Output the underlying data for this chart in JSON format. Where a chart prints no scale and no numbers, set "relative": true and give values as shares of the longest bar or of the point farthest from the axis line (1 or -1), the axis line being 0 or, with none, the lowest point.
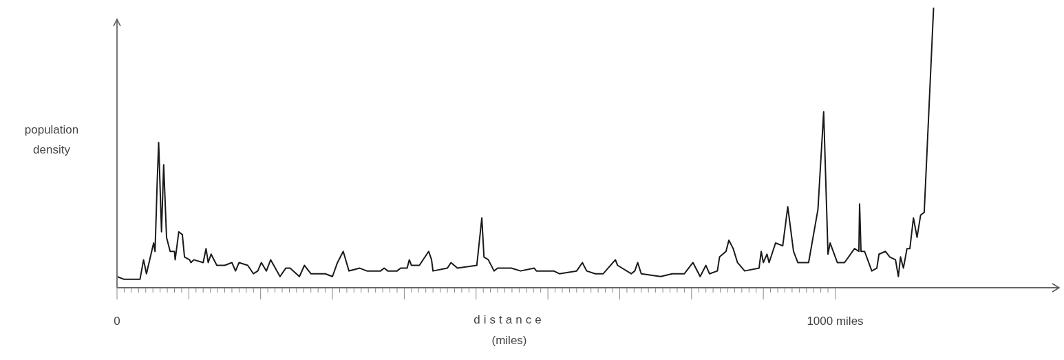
{
  "chart_data": {
    "type": "line",
    "relative": true,
    "ylabel": "population density",
    "xlabel": "distance (miles)",
    "xlim": [
      0,
      1310
    ],
    "xticks": [
      0,
      {
        "value": 10,
        "label": null
      },
      {
        "value": 20,
        "label": null
      },
      {
        "value": 30,
        "label": null
      },
      {
        "value": 40,
        "label": null
      },
      {
        "value": 50,
        "label": null
      },
      {
        "value": 60,
        "label": null
      },
      {
        "value": 70,
        "label": null
      },
      {
        "value": 80,
        "label": null
      },
      {
        "value": 90,
        "label": null
      },
      {
        "value": 100,
        "label": null
      },
      {
        "value": 110,
        "label": null
      },
      {
        "value": 120,
        "label": null
      },
      {
        "value": 130,
        "label": null
      },
      {
        "value": 140,
        "label": null
      },
      {
        "value": 150,
        "label": null
      },
      {
        "value": 160,
        "label": null
      },
      {
        "value": 170,
        "label": null
      },
      {
        "value": 180,
        "label": null
      },
      {
        "value": 190,
        "label": null
      },
      {
        "value": 200,
        "label": null
      },
      {
        "value": 210,
        "label": null
      },
      {
        "value": 220,
        "label": null
      },
      {
        "value": 230,
        "label": null
      },
      {
        "value": 240,
        "label": null
      },
      {
        "value": 250,
        "label": null
      },
      {
        "value": 260,
        "label": null
      },
      {
        "value": 270,
        "label": null
      },
      {
        "value": 280,
        "label": null
      },
      {
        "value": 290,
        "label": null
      },
      {
        "value": 300,
        "label": null
      },
      {
        "value": 310,
        "label": null
      },
      {
        "value": 320,
        "label": null
      },
      {
        "value": 330,
        "label": null
      },
      {
        "value": 340,
        "label": null
      },
      {
        "value": 350,
        "label": null
      },
      {
        "value": 360,
        "label": null
      },
      {
        "value": 370,
        "label": null
      },
      {
        "value": 380,
        "label": null
      },
      {
        "value": 390,
        "label": null
      },
      {
        "value": 400,
        "label": null
      },
      {
        "value": 410,
        "label": null
      },
      {
        "value": 420,
        "label": null
      },
      {
        "value": 430,
        "label": null
      },
      {
        "value": 440,
        "label": null
      },
      {
        "value": 450,
        "label": null
      },
      {
        "value": 460,
        "label": null
      },
      {
        "value": 470,
        "label": null
      },
      {
        "value": 480,
        "label": null
      },
      {
        "value": 490,
        "label": null
      },
      {
        "value": 500,
        "label": null
      },
      {
        "value": 510,
        "label": null
      },
      {
        "value": 520,
        "label": null
      },
      {
        "value": 530,
        "label": null
      },
      {
        "value": 540,
        "label": null
      },
      {
        "value": 550,
        "label": null
      },
      {
        "value": 560,
        "label": null
      },
      {
        "value": 570,
        "label": null
      },
      {
        "value": 580,
        "label": null
      },
      {
        "value": 590,
        "label": null
      },
      {
        "value": 600,
        "label": null
      },
      {
        "value": 610,
        "label": null
      },
      {
        "value": 620,
        "label": null
      },
      {
        "value": 630,
        "label": null
      },
      {
        "value": 640,
        "label": null
      },
      {
        "value": 650,
        "label": null
      },
      {
        "value": 660,
        "label": null
      },
      {
        "value": 670,
        "label": null
      },
      {
        "value": 680,
        "label": null
      },
      {
        "value": 690,
        "label": null
      },
      {
        "value": 700,
        "label": null
      },
      {
        "value": 710,
        "label": null
      },
      {
        "value": 720,
        "label": null
      },
      {
        "value": 730,
        "label": null
      },
      {
        "value": 740,
        "label": null
      },
      {
        "value": 750,
        "label": null
      },
      {
        "value": 760,
        "label": null
      },
      {
        "value": 770,
        "label": null
      },
      {
        "value": 780,
        "label": null
      },
      {
        "value": 790,
        "label": null
      },
      {
        "value": 800,
        "label": null
      },
      {
        "value": 810,
        "label": null
      },
      {
        "value": 820,
        "label": null
      },
      {
        "value": 830,
        "label": null
      },
      {
        "value": 840,
        "label": null
      },
      {
        "value": 850,
        "label": null
      },
      {
        "value": 860,
        "label": null
      },
      {
        "value": 870,
        "label": null
      },
      {
        "value": 880,
        "label": null
      },
      {
        "value": 890,
        "label": null
      },
      {
        "value": 900,
        "label": null
      },
      {
        "value": 910,
        "label": null
      },
      {
        "value": 920,
        "label": null
      },
      {
        "value": 930,
        "label": null
      },
      {
        "value": 940,
        "label": null
      },
      {
        "value": 950,
        "label": null
      },
      {
        "value": 960,
        "label": null
      },
      {
        "value": 970,
        "label": null
      },
      {
        "value": 980,
        "label": null
      },
      {
        "value": 990,
        "label": null
      },
      {
        "value": 1000,
        "label": "1000 miles"
      }
    ],
    "series": [
      {
        "color": "#1a1a1a",
        "x": [
          0,
          10,
          32,
          37,
          41,
          51,
          53,
          56,
          58,
          62,
          65,
          69,
          74,
          80,
          81,
          86,
          91,
          94,
          101,
          103,
          107,
          120,
          124,
          127,
          131,
          139,
          150,
          160,
          165,
          170,
          182,
          190,
          196,
          201,
          208,
          214,
          227,
          235,
          241,
          254,
          261,
          270,
          290,
          300,
          307,
          315,
          323,
          338,
          348,
          367,
          372,
          377,
          390,
          395,
          404,
          407,
          410,
          421,
          434,
          438,
          440,
          460,
          465,
          474,
          501,
          508,
          511,
          517,
          525,
          530,
          549,
          562,
          581,
          584,
          608,
          616,
          640,
          648,
          654,
          666,
          677,
          694,
          697,
          716,
          721,
          725,
          730,
          757,
          773,
          790,
          802,
          812,
          820,
          825,
          836,
          839,
          848,
          852,
          858,
          864,
          874,
          894,
          897,
          900,
          905,
          908,
          917,
          927,
          934,
          942,
          948,
          963,
          976,
          984,
          990,
          993,
          1003,
          1013,
          1027,
          1033,
          1034,
          1036,
          1041,
          1051,
          1058,
          1061,
          1070,
          1076,
          1084,
          1088,
          1091,
          1095,
          1100,
          1104,
          1109,
          1114,
          1119,
          1124,
          1137
        ],
        "values": [
          0.04,
          0.03,
          0.03,
          0.1,
          0.05,
          0.16,
          0.13,
          0.38,
          0.52,
          0.2,
          0.44,
          0.18,
          0.13,
          0.13,
          0.1,
          0.2,
          0.19,
          0.11,
          0.1,
          0.09,
          0.1,
          0.09,
          0.14,
          0.09,
          0.12,
          0.08,
          0.08,
          0.09,
          0.06,
          0.09,
          0.08,
          0.05,
          0.06,
          0.09,
          0.06,
          0.1,
          0.04,
          0.07,
          0.07,
          0.04,
          0.08,
          0.05,
          0.05,
          0.04,
          0.09,
          0.13,
          0.06,
          0.07,
          0.06,
          0.06,
          0.07,
          0.06,
          0.06,
          0.07,
          0.07,
          0.1,
          0.08,
          0.08,
          0.13,
          0.1,
          0.06,
          0.07,
          0.09,
          0.07,
          0.08,
          0.25,
          0.11,
          0.1,
          0.06,
          0.07,
          0.07,
          0.06,
          0.07,
          0.06,
          0.06,
          0.05,
          0.06,
          0.09,
          0.06,
          0.05,
          0.05,
          0.1,
          0.08,
          0.05,
          0.06,
          0.09,
          0.05,
          0.04,
          0.05,
          0.05,
          0.09,
          0.04,
          0.08,
          0.05,
          0.06,
          0.11,
          0.13,
          0.17,
          0.14,
          0.09,
          0.06,
          0.07,
          0.13,
          0.09,
          0.12,
          0.09,
          0.16,
          0.15,
          0.29,
          0.13,
          0.09,
          0.09,
          0.28,
          0.63,
          0.12,
          0.16,
          0.09,
          0.09,
          0.14,
          0.13,
          0.3,
          0.13,
          0.13,
          0.06,
          0.07,
          0.12,
          0.13,
          0.11,
          0.1,
          0.04,
          0.11,
          0.07,
          0.14,
          0.14,
          0.25,
          0.18,
          0.26,
          0.27,
          1.0
        ]
      }
    ]
  }
}
